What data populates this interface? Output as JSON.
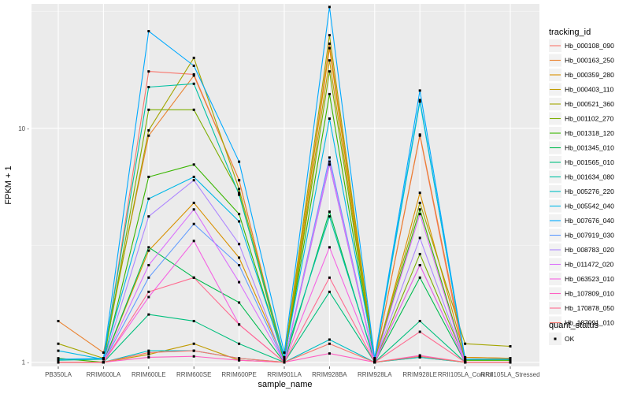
{
  "chart_data": {
    "type": "line",
    "yscale": "log",
    "xlabel": "sample_name",
    "ylabel": "FPKM + 1",
    "ylim": [
      0.96,
      34
    ],
    "y_ticks": [
      1,
      10
    ],
    "y_tick_labels": [
      "1 -",
      "10 -"
    ],
    "categories": [
      "PB350LA",
      "RRIM600LA",
      "RRIM600LE",
      "RRIM600SE",
      "RRIM600PE",
      "RRIM901LA",
      "RRIM928BA",
      "RRIM928LA",
      "RRIM928LE",
      "RRII105LA_Control",
      "RRII105LA_Stressed"
    ],
    "legend": {
      "title": "tracking_id",
      "position": "right"
    },
    "shape_legend": {
      "title": "quant_status",
      "items": [
        {
          "label": "OK"
        }
      ]
    },
    "series": [
      {
        "name": "Hb_000108_090",
        "color": "#F8766D",
        "values": [
          1.0,
          1.0,
          17.5,
          17.0,
          6.0,
          1.0,
          7.0,
          1.0,
          9.3,
          1.0,
          1.0
        ]
      },
      {
        "name": "Hb_000163_250",
        "color": "#EA8331",
        "values": [
          1.5,
          1.1,
          9.3,
          16.8,
          6.0,
          1.0,
          23.0,
          1.0,
          9.4,
          1.05,
          1.04
        ]
      },
      {
        "name": "Hb_000359_280",
        "color": "#D89000",
        "values": [
          1.0,
          1.0,
          3.0,
          4.8,
          2.8,
          1.02,
          22.0,
          1.0,
          5.3,
          1.05,
          1.04
        ]
      },
      {
        "name": "Hb_000403_110",
        "color": "#C09B00",
        "values": [
          1.0,
          1.0,
          1.08,
          1.2,
          1.02,
          1.0,
          19.5,
          1.0,
          1.05,
          1.0,
          1.0
        ]
      },
      {
        "name": "Hb_000521_360",
        "color": "#A3A500",
        "values": [
          1.2,
          1.04,
          9.8,
          20.0,
          5.5,
          1.05,
          25.0,
          1.02,
          4.8,
          1.2,
          1.17
        ]
      },
      {
        "name": "Hb_001102_270",
        "color": "#7CAE00",
        "values": [
          1.0,
          1.0,
          12.0,
          12.0,
          5.3,
          1.0,
          17.5,
          1.0,
          2.9,
          1.02,
          1.02
        ]
      },
      {
        "name": "Hb_001318_120",
        "color": "#39B600",
        "values": [
          1.04,
          1.0,
          6.2,
          7.0,
          4.3,
          1.02,
          14.0,
          1.0,
          4.5,
          1.02,
          1.02
        ]
      },
      {
        "name": "Hb_001345_010",
        "color": "#00BB4E",
        "values": [
          1.0,
          1.0,
          3.1,
          2.3,
          1.8,
          1.0,
          4.4,
          1.0,
          2.3,
          1.0,
          1.0
        ]
      },
      {
        "name": "Hb_001565_010",
        "color": "#00BF7D",
        "values": [
          1.0,
          1.0,
          1.6,
          1.5,
          1.2,
          1.0,
          2.0,
          1.0,
          1.5,
          1.0,
          1.0
        ]
      },
      {
        "name": "Hb_001634_080",
        "color": "#00C1A3",
        "values": [
          1.02,
          1.03,
          15.0,
          15.5,
          5.2,
          1.05,
          4.2,
          1.02,
          13.0,
          1.03,
          1.03
        ]
      },
      {
        "name": "Hb_005276_220",
        "color": "#00BFC4",
        "values": [
          1.0,
          1.0,
          1.12,
          1.12,
          1.04,
          1.0,
          1.25,
          1.0,
          1.05,
          1.0,
          1.0
        ]
      },
      {
        "name": "Hb_005542_040",
        "color": "#00B8E7",
        "values": [
          1.12,
          1.03,
          5.0,
          6.2,
          4.0,
          1.04,
          11.0,
          1.04,
          13.2,
          1.03,
          1.03
        ]
      },
      {
        "name": "Hb_007676_040",
        "color": "#00A9FF",
        "values": [
          1.03,
          1.04,
          26.0,
          18.5,
          7.2,
          1.1,
          33.0,
          1.04,
          14.5,
          1.03,
          1.03
        ]
      },
      {
        "name": "Hb_007919_030",
        "color": "#619CFF",
        "values": [
          1.0,
          1.0,
          2.3,
          3.9,
          2.6,
          1.0,
          7.5,
          1.0,
          2.6,
          1.0,
          1.0
        ]
      },
      {
        "name": "Hb_008783_020",
        "color": "#AE87FF",
        "values": [
          1.0,
          1.0,
          4.2,
          6.0,
          3.2,
          1.0,
          7.0,
          1.0,
          3.4,
          1.0,
          1.0
        ]
      },
      {
        "name": "Hb_011472_020",
        "color": "#DB72FB",
        "values": [
          1.0,
          1.0,
          2.6,
          4.5,
          2.2,
          1.0,
          7.2,
          1.0,
          4.3,
          1.0,
          1.0
        ]
      },
      {
        "name": "Hb_063523_010",
        "color": "#F564E3",
        "values": [
          1.0,
          1.0,
          1.9,
          3.3,
          1.45,
          1.0,
          3.1,
          1.0,
          2.6,
          1.0,
          1.0
        ]
      },
      {
        "name": "Hb_107809_010",
        "color": "#FF61C3",
        "values": [
          1.0,
          1.0,
          1.05,
          1.06,
          1.02,
          1.0,
          1.09,
          1.0,
          1.07,
          1.0,
          1.0
        ]
      },
      {
        "name": "Hb_170878_050",
        "color": "#FF6C91",
        "values": [
          1.0,
          1.0,
          2.0,
          2.3,
          1.45,
          1.0,
          2.3,
          1.0,
          1.35,
          1.0,
          1.0
        ]
      },
      {
        "name": "Hb_187991_010",
        "color": "#F8766D",
        "values": [
          1.0,
          1.0,
          1.1,
          1.12,
          1.04,
          1.0,
          1.2,
          1.0,
          1.06,
          1.0,
          1.0
        ]
      }
    ]
  }
}
